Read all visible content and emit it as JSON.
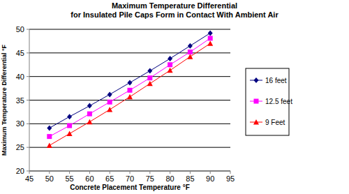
{
  "chart_data": {
    "type": "line",
    "title": "Maximum Temperature Differential",
    "subtitle": "for Insulated Pile Caps Form in Contact With Ambient Air",
    "x_label": "Concrete Placement Temperature °F",
    "y_label": "Maximum Temperature Differential °F",
    "x": [
      50,
      55,
      60,
      65,
      70,
      75,
      80,
      85,
      90
    ],
    "series": [
      {
        "name": "16 feet",
        "color": "#000080",
        "marker": "diamond",
        "values": [
          29.1,
          31.5,
          33.8,
          36.2,
          38.7,
          41.2,
          43.8,
          46.5,
          49.2
        ]
      },
      {
        "name": "12.5 feet",
        "color": "#ff00ff",
        "marker": "square",
        "values": [
          27.3,
          29.6,
          32.1,
          34.6,
          37.1,
          39.7,
          42.5,
          45.2,
          48.1
        ]
      },
      {
        "name": "9 Feet",
        "color": "#ff0000",
        "marker": "triangle",
        "values": [
          25.4,
          27.9,
          30.4,
          33.0,
          35.7,
          38.5,
          41.3,
          44.2,
          47.0
        ]
      }
    ],
    "xlim": [
      45,
      95
    ],
    "xticks": [
      45,
      50,
      55,
      60,
      65,
      70,
      75,
      80,
      85,
      90,
      95
    ],
    "ylim": [
      20,
      50
    ],
    "yticks": [
      20,
      25,
      30,
      35,
      40,
      45,
      50
    ],
    "grid": true,
    "legend": "right"
  }
}
